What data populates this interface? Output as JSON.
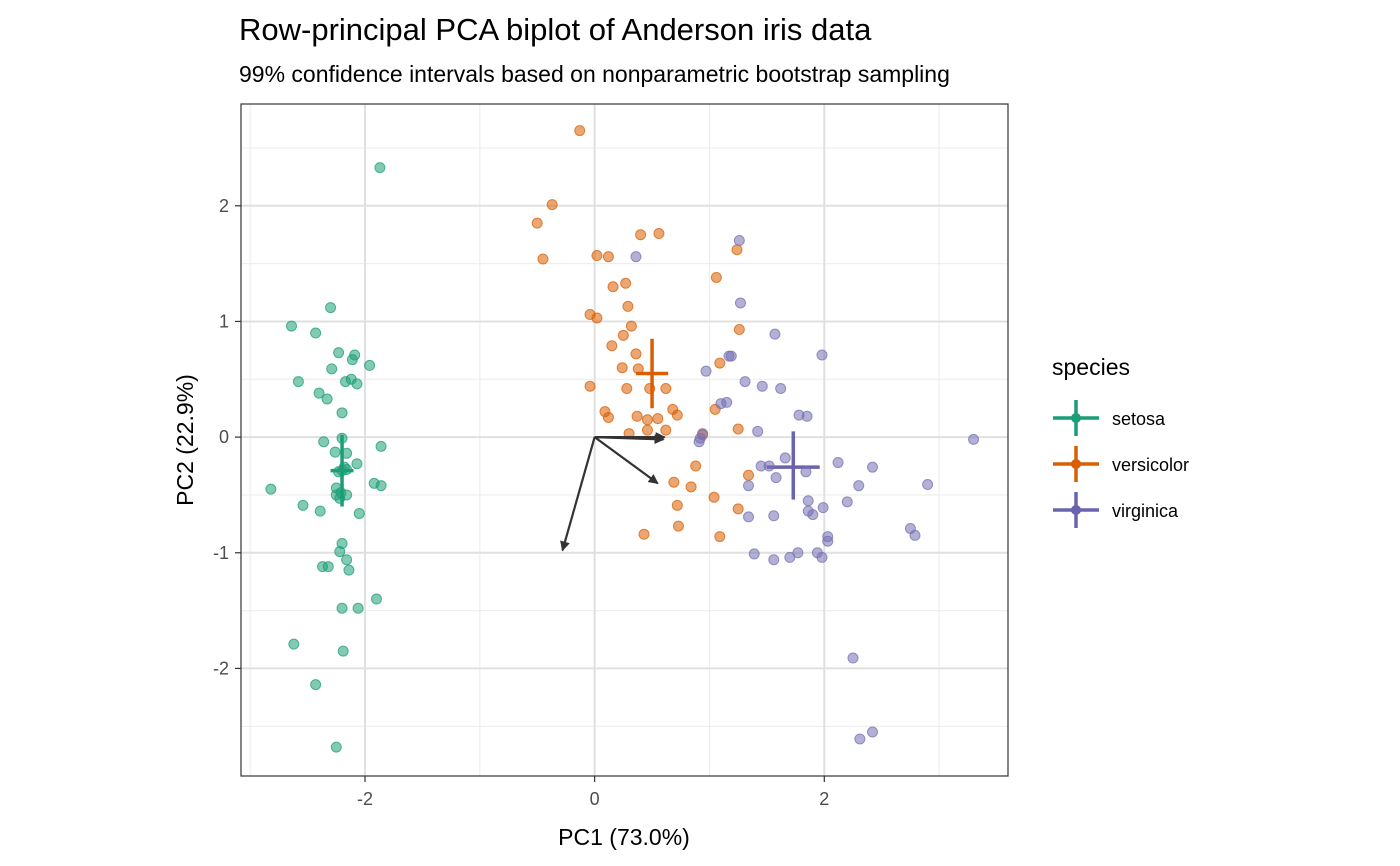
{
  "chart_data": {
    "type": "scatter",
    "title": "Row-principal PCA biplot of Anderson iris data",
    "subtitle": "99% confidence intervals based on nonparametric bootstrap sampling",
    "xlabel": "PC1 (73.0%)",
    "ylabel": "PC2 (22.9%)",
    "xlim": [
      -3.08,
      3.6
    ],
    "ylim": [
      -2.93,
      2.88
    ],
    "xticks": [
      -2,
      0,
      2
    ],
    "yticks": [
      -2,
      -1,
      0,
      1,
      2
    ],
    "xtick_labels": [
      "-2",
      "0",
      "2"
    ],
    "ytick_labels": [
      "-2",
      "-1",
      "0",
      "1",
      "2"
    ],
    "grid": true,
    "legend": {
      "title": "species",
      "position": "right"
    },
    "series": [
      {
        "name": "setosa",
        "color": "#1b9e77",
        "points": [
          [
            -1.87,
            2.33
          ],
          [
            -2.3,
            1.12
          ],
          [
            -2.64,
            0.96
          ],
          [
            -2.43,
            0.9
          ],
          [
            -2.23,
            0.73
          ],
          [
            -2.09,
            0.71
          ],
          [
            -2.11,
            0.67
          ],
          [
            -1.96,
            0.62
          ],
          [
            -2.58,
            0.48
          ],
          [
            -2.29,
            0.59
          ],
          [
            -2.17,
            0.48
          ],
          [
            -2.12,
            0.5
          ],
          [
            -2.07,
            0.46
          ],
          [
            -2.4,
            0.38
          ],
          [
            -2.33,
            0.33
          ],
          [
            -2.2,
            0.21
          ],
          [
            -2.36,
            -0.04
          ],
          [
            -2.2,
            -0.01
          ],
          [
            -1.86,
            -0.08
          ],
          [
            -2.26,
            -0.13
          ],
          [
            -2.16,
            -0.14
          ],
          [
            -2.07,
            -0.23
          ],
          [
            -2.18,
            -0.26
          ],
          [
            -2.2,
            -0.29
          ],
          [
            -2.16,
            -0.28
          ],
          [
            -2.23,
            -0.3
          ],
          [
            -1.92,
            -0.4
          ],
          [
            -1.86,
            -0.42
          ],
          [
            -2.25,
            -0.44
          ],
          [
            -2.82,
            -0.45
          ],
          [
            -2.21,
            -0.48
          ],
          [
            -2.16,
            -0.5
          ],
          [
            -2.22,
            -0.53
          ],
          [
            -2.54,
            -0.59
          ],
          [
            -2.39,
            -0.64
          ],
          [
            -2.05,
            -0.66
          ],
          [
            -2.2,
            -0.92
          ],
          [
            -2.22,
            -0.99
          ],
          [
            -2.16,
            -1.06
          ],
          [
            -2.37,
            -1.12
          ],
          [
            -2.32,
            -1.12
          ],
          [
            -2.14,
            -1.15
          ],
          [
            -1.9,
            -1.4
          ],
          [
            -2.2,
            -1.48
          ],
          [
            -2.06,
            -1.48
          ],
          [
            -2.62,
            -1.79
          ],
          [
            -2.19,
            -1.85
          ],
          [
            -2.43,
            -2.14
          ],
          [
            -2.25,
            -2.68
          ],
          [
            -2.25,
            -0.5
          ]
        ]
      },
      {
        "name": "versicolor",
        "color": "#d95f02",
        "points": [
          [
            -0.13,
            2.65
          ],
          [
            -0.37,
            2.01
          ],
          [
            -0.5,
            1.85
          ],
          [
            -0.45,
            1.54
          ],
          [
            0.4,
            1.75
          ],
          [
            0.56,
            1.76
          ],
          [
            0.02,
            1.57
          ],
          [
            0.12,
            1.56
          ],
          [
            1.06,
            1.38
          ],
          [
            1.24,
            1.62
          ],
          [
            0.16,
            1.3
          ],
          [
            0.27,
            1.33
          ],
          [
            0.29,
            1.13
          ],
          [
            -0.04,
            1.06
          ],
          [
            0.02,
            1.03
          ],
          [
            0.32,
            0.96
          ],
          [
            1.26,
            0.93
          ],
          [
            0.15,
            0.79
          ],
          [
            0.25,
            0.88
          ],
          [
            0.36,
            0.72
          ],
          [
            1.09,
            0.64
          ],
          [
            0.38,
            0.59
          ],
          [
            0.24,
            0.6
          ],
          [
            0.48,
            0.42
          ],
          [
            0.62,
            0.42
          ],
          [
            0.28,
            0.42
          ],
          [
            -0.04,
            0.44
          ],
          [
            0.68,
            0.24
          ],
          [
            0.72,
            0.19
          ],
          [
            0.55,
            0.16
          ],
          [
            0.09,
            0.22
          ],
          [
            0.12,
            0.17
          ],
          [
            0.37,
            0.18
          ],
          [
            0.46,
            0.15
          ],
          [
            1.05,
            0.24
          ],
          [
            1.25,
            0.07
          ],
          [
            0.94,
            0.02
          ],
          [
            0.3,
            0.03
          ],
          [
            0.46,
            0.06
          ],
          [
            0.62,
            0.06
          ],
          [
            0.88,
            -0.25
          ],
          [
            0.69,
            -0.39
          ],
          [
            1.34,
            -0.33
          ],
          [
            0.84,
            -0.43
          ],
          [
            0.72,
            -0.59
          ],
          [
            1.04,
            -0.52
          ],
          [
            1.25,
            -0.62
          ],
          [
            0.73,
            -0.77
          ],
          [
            0.43,
            -0.84
          ],
          [
            1.09,
            -0.86
          ]
        ]
      },
      {
        "name": "virginica",
        "color": "#7570b3",
        "points": [
          [
            1.26,
            1.7
          ],
          [
            0.36,
            1.56
          ],
          [
            1.27,
            1.16
          ],
          [
            1.57,
            0.89
          ],
          [
            1.98,
            0.71
          ],
          [
            1.17,
            0.7
          ],
          [
            1.19,
            0.7
          ],
          [
            0.97,
            0.57
          ],
          [
            1.31,
            0.48
          ],
          [
            1.46,
            0.44
          ],
          [
            1.62,
            0.42
          ],
          [
            1.15,
            0.3
          ],
          [
            1.1,
            0.29
          ],
          [
            1.78,
            0.19
          ],
          [
            1.85,
            0.18
          ],
          [
            0.94,
            0.03
          ],
          [
            0.92,
            -0.01
          ],
          [
            0.91,
            -0.04
          ],
          [
            1.42,
            0.05
          ],
          [
            3.3,
            -0.02
          ],
          [
            1.45,
            -0.25
          ],
          [
            1.52,
            -0.25
          ],
          [
            1.34,
            -0.42
          ],
          [
            2.42,
            -0.26
          ],
          [
            2.3,
            -0.42
          ],
          [
            2.9,
            -0.41
          ],
          [
            1.86,
            -0.55
          ],
          [
            1.9,
            -0.67
          ],
          [
            2.2,
            -0.56
          ],
          [
            1.99,
            -0.61
          ],
          [
            2.75,
            -0.79
          ],
          [
            2.79,
            -0.85
          ],
          [
            1.34,
            -0.69
          ],
          [
            1.56,
            -0.68
          ],
          [
            1.86,
            -0.64
          ],
          [
            2.03,
            -0.86
          ],
          [
            2.03,
            -0.9
          ],
          [
            1.94,
            -1.0
          ],
          [
            1.98,
            -1.04
          ],
          [
            1.39,
            -1.01
          ],
          [
            1.56,
            -1.06
          ],
          [
            1.7,
            -1.04
          ],
          [
            1.77,
            -1.0
          ],
          [
            2.25,
            -1.91
          ],
          [
            2.31,
            -2.61
          ],
          [
            2.42,
            -2.55
          ],
          [
            1.84,
            -0.3
          ],
          [
            1.66,
            -0.18
          ],
          [
            2.12,
            -0.22
          ],
          [
            1.58,
            -0.35
          ]
        ]
      }
    ],
    "centroid_intervals": [
      {
        "name": "setosa",
        "x": -2.2,
        "x_range": [
          -2.3,
          -2.1
        ],
        "y": -0.29,
        "y_range": [
          -0.6,
          0.02
        ]
      },
      {
        "name": "versicolor",
        "x": 0.5,
        "x_range": [
          0.36,
          0.64
        ],
        "y": 0.55,
        "y_range": [
          0.25,
          0.85
        ]
      },
      {
        "name": "virginica",
        "x": 1.73,
        "x_range": [
          1.5,
          1.96
        ],
        "y": -0.26,
        "y_range": [
          -0.54,
          0.05
        ]
      }
    ],
    "variable_vectors": [
      {
        "x": 0.6,
        "y": -0.02
      },
      {
        "x": 0.55,
        "y": -0.4
      },
      {
        "x": -0.28,
        "y": -0.98
      },
      {
        "x": 0.61,
        "y": 0.0
      }
    ]
  }
}
